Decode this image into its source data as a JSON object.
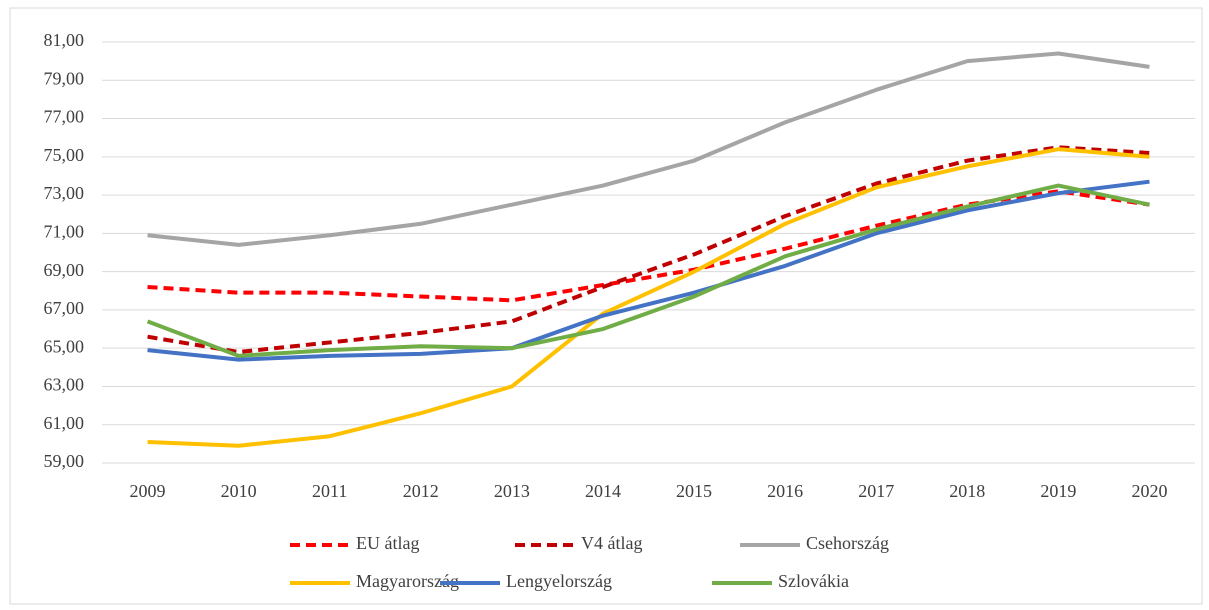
{
  "chart_data": {
    "type": "line",
    "categories": [
      "2009",
      "2010",
      "2011",
      "2012",
      "2013",
      "2014",
      "2015",
      "2016",
      "2017",
      "2018",
      "2019",
      "2020"
    ],
    "series": [
      {
        "name": "EU átlag",
        "color": "#ff0000",
        "dashed": true,
        "values": [
          68.2,
          67.9,
          67.9,
          67.7,
          67.5,
          68.3,
          69.1,
          70.2,
          71.4,
          72.5,
          73.2,
          72.5
        ]
      },
      {
        "name": "V4 átlag",
        "color": "#c00000",
        "dashed": true,
        "values": [
          65.6,
          64.8,
          65.3,
          65.8,
          66.4,
          68.2,
          69.9,
          71.9,
          73.6,
          74.8,
          75.5,
          75.2
        ]
      },
      {
        "name": "Csehország",
        "color": "#a5a5a5",
        "dashed": false,
        "values": [
          70.9,
          70.4,
          70.9,
          71.5,
          72.5,
          73.5,
          74.8,
          76.8,
          78.5,
          80.0,
          80.4,
          79.7
        ]
      },
      {
        "name": "Magyarország",
        "color": "#ffc000",
        "dashed": false,
        "values": [
          60.1,
          59.9,
          60.4,
          61.6,
          63.0,
          66.8,
          69.0,
          71.5,
          73.4,
          74.5,
          75.4,
          75.0
        ]
      },
      {
        "name": "Lengyelország",
        "color": "#4472c4",
        "dashed": false,
        "values": [
          64.9,
          64.4,
          64.6,
          64.7,
          65.0,
          66.7,
          67.9,
          69.3,
          71.0,
          72.2,
          73.1,
          73.7
        ]
      },
      {
        "name": "Szlovákia",
        "color": "#70ad47",
        "dashed": false,
        "values": [
          66.4,
          64.6,
          64.9,
          65.1,
          65.0,
          66.0,
          67.7,
          69.8,
          71.2,
          72.4,
          73.5,
          72.5
        ]
      }
    ],
    "ylim": [
      59,
      81
    ],
    "yticks": [
      {
        "value": 59,
        "label": "59,00"
      },
      {
        "value": 61,
        "label": "61,00"
      },
      {
        "value": 63,
        "label": "63,00"
      },
      {
        "value": 65,
        "label": "65,00"
      },
      {
        "value": 67,
        "label": "67,00"
      },
      {
        "value": 69,
        "label": "69,00"
      },
      {
        "value": 71,
        "label": "71,00"
      },
      {
        "value": 73,
        "label": "73,00"
      },
      {
        "value": 75,
        "label": "75,00"
      },
      {
        "value": 77,
        "label": "77,00"
      },
      {
        "value": 79,
        "label": "79,00"
      },
      {
        "value": 81,
        "label": "81,00"
      }
    ],
    "grid": true,
    "legend": "bottom"
  }
}
